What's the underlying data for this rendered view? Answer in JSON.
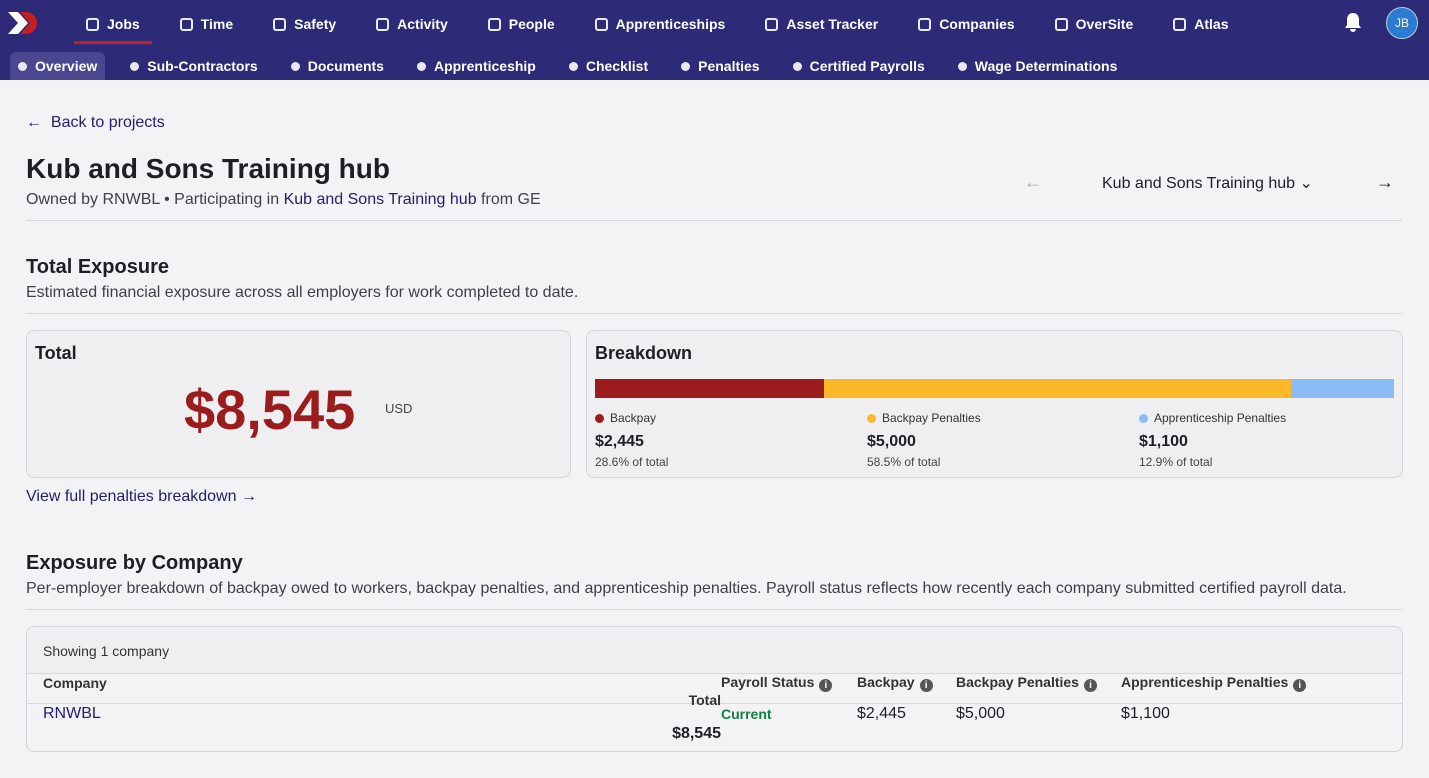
{
  "nav": {
    "primary": [
      "Jobs",
      "Time",
      "Safety",
      "Activity",
      "People",
      "Apprenticeships",
      "Asset Tracker",
      "Companies",
      "OverSite",
      "Atlas"
    ],
    "avatar": "JB",
    "secondary": [
      "Overview",
      "Sub-Contractors",
      "Documents",
      "Apprenticeship",
      "Checklist",
      "Penalties",
      "Certified Payrolls",
      "Wage Determinations"
    ]
  },
  "back_link": "Back to projects",
  "project": {
    "title": "Kub and Sons Training hub",
    "owner": "Owned by RNWBL • Participating in",
    "link": "Kub and Sons Training hub",
    "suffix": "from GE",
    "switcher": "Kub and Sons Training hub"
  },
  "exposure": {
    "title": "Total Exposure",
    "description": "Estimated financial exposure across all employers for work completed to date.",
    "total_label": "Total",
    "total": "$8,545",
    "currency": "USD",
    "breakdown_title": "Breakdown",
    "items": [
      {
        "name": "Backpay",
        "value": 2445,
        "label": "$2,445",
        "share": "28.6% of total",
        "color": "#9b1c1c"
      },
      {
        "name": "Backpay Penalties",
        "value": 5000,
        "label": "$5,000",
        "share": "58.5% of total",
        "color": "#fbb829"
      },
      {
        "name": "Apprenticeship Penalties",
        "value": 1100,
        "label": "$1,100",
        "share": "12.9% of total",
        "color": "#8bbcf5"
      }
    ],
    "link": "View full penalties breakdown →"
  },
  "companies": {
    "title": "Exposure by Company",
    "description": "Per-employer breakdown of backpay owed to workers, backpay penalties, and apprenticeship penalties. Payroll status reflects how recently each company submitted certified payroll data.",
    "count": "Showing 1 company",
    "columns": [
      "Company",
      "Payroll Status",
      "Backpay",
      "Backpay Penalties",
      "Apprenticeship Penalties",
      "Total"
    ],
    "rows": [
      [
        "RNWBL",
        "Current",
        "$2,445",
        "$5,000",
        "$1,100",
        "$8,545"
      ]
    ]
  }
}
